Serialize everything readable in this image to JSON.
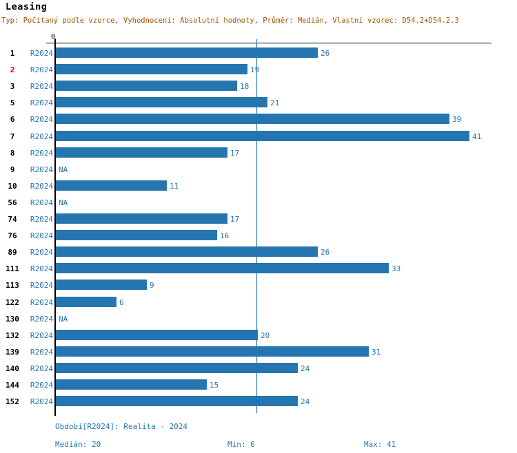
{
  "header": {
    "title": "Leasing",
    "subtitle": "Typ: Počítaný podle vzorce, Vyhodnocení: Absolutní hodnoty, Průměr: Medián, Vlastní vzorec: D54.2+D54.2.3"
  },
  "axis": {
    "zero_label": "0"
  },
  "chart_data": {
    "type": "bar",
    "orientation": "horizontal",
    "title": "Leasing",
    "categories": [
      "1",
      "2",
      "3",
      "5",
      "6",
      "7",
      "8",
      "9",
      "10",
      "56",
      "74",
      "76",
      "89",
      "111",
      "113",
      "122",
      "130",
      "132",
      "139",
      "140",
      "144",
      "152"
    ],
    "period_label": "R2024",
    "series": [
      {
        "name": "R2024",
        "values": [
          26,
          19,
          18,
          21,
          39,
          41,
          17,
          null,
          11,
          null,
          17,
          16,
          26,
          33,
          9,
          6,
          null,
          20,
          31,
          24,
          15,
          24
        ]
      }
    ],
    "na_label": "NA",
    "highlighted_category": "2",
    "median": 20,
    "min": 6,
    "max": 41,
    "xlim": [
      0,
      43.5
    ],
    "grid": false,
    "bar_color": "#2576B0",
    "median_line_color": "#2377B4",
    "label_color": "#2377B4",
    "highlight_color": "#D40000"
  },
  "footer": {
    "period_line": "Období[R2024]: Realita - 2024",
    "median_label": "Medián: 20",
    "min_label": "Min: 6",
    "max_label": "Max: 41"
  }
}
